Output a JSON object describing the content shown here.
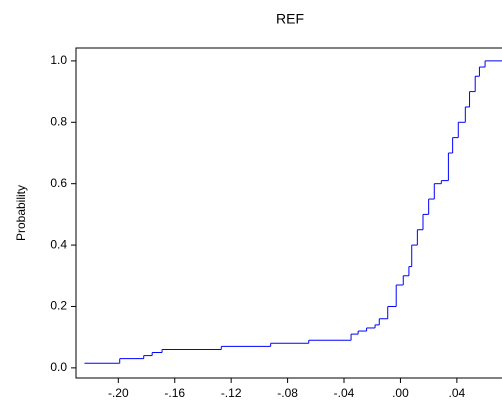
{
  "chart_data": {
    "type": "step",
    "title": "REF",
    "y_label": "Probability",
    "x": [
      -0.224,
      -0.199,
      -0.182,
      -0.176,
      -0.169,
      -0.127,
      -0.092,
      -0.065,
      -0.035,
      -0.03,
      -0.024,
      -0.018,
      -0.015,
      -0.009,
      -0.003,
      0.002,
      0.006,
      0.008,
      0.012,
      0.016,
      0.02,
      0.024,
      0.029,
      0.034,
      0.037,
      0.041,
      0.046,
      0.049,
      0.053,
      0.056,
      0.06
    ],
    "values": [
      0.015,
      0.03,
      0.04,
      0.05,
      0.06,
      0.07,
      0.08,
      0.09,
      0.11,
      0.12,
      0.13,
      0.14,
      0.16,
      0.2,
      0.27,
      0.3,
      0.33,
      0.4,
      0.45,
      0.5,
      0.55,
      0.6,
      0.61,
      0.7,
      0.75,
      0.8,
      0.85,
      0.9,
      0.95,
      0.98,
      1.0
    ],
    "color": "#0000ff",
    "xlim": [
      -0.23,
      0.072
    ],
    "ylim": [
      -0.033,
      1.042
    ],
    "xticks": [
      {
        "value": -0.2,
        "label": "-.20"
      },
      {
        "value": -0.16,
        "label": "-.16"
      },
      {
        "value": -0.12,
        "label": "-.12"
      },
      {
        "value": -0.08,
        "label": "-.08"
      },
      {
        "value": -0.04,
        "label": "-.04"
      },
      {
        "value": 0,
        "label": ".00"
      },
      {
        "value": 0.04,
        "label": ".04"
      }
    ],
    "yticks": [
      {
        "value": 0,
        "label": "0.0"
      },
      {
        "value": 0.2,
        "label": "0.2"
      },
      {
        "value": 0.4,
        "label": "0.4"
      },
      {
        "value": 0.6,
        "label": "0.6"
      },
      {
        "value": 0.8,
        "label": "0.8"
      },
      {
        "value": 1.0,
        "label": "1.0"
      }
    ]
  }
}
